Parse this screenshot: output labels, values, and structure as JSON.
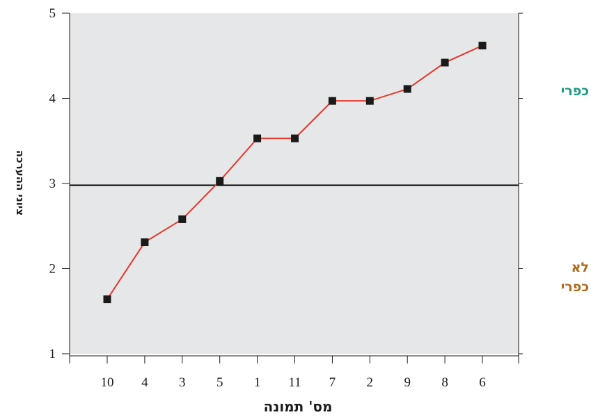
{
  "chart_data": {
    "type": "line",
    "xlabel": "מס' תמונה",
    "ylabel": "ציוני ההערכה",
    "categories": [
      "10",
      "4",
      "3",
      "5",
      "1",
      "11",
      "7",
      "2",
      "9",
      "8",
      "6"
    ],
    "series": [
      {
        "values": [
          1.64,
          2.31,
          2.58,
          3.03,
          3.53,
          3.53,
          3.97,
          3.97,
          4.11,
          4.42,
          4.62
        ]
      }
    ],
    "ylim": [
      1,
      5
    ],
    "yticks": [
      "1",
      "2",
      "3",
      "4",
      "5"
    ],
    "reference_line": 2.98,
    "grid": false,
    "colors": {
      "line": "#e8352a",
      "marker": "#1a1a1a",
      "plot_bg": "#e6e7e8",
      "reference": "#000000"
    }
  },
  "annotations": {
    "rural": {
      "text": "כפרי",
      "color": "#1a9a82"
    },
    "not_rural": {
      "line1": "לא",
      "line2": "כפרי",
      "color": "#b06a18"
    }
  }
}
